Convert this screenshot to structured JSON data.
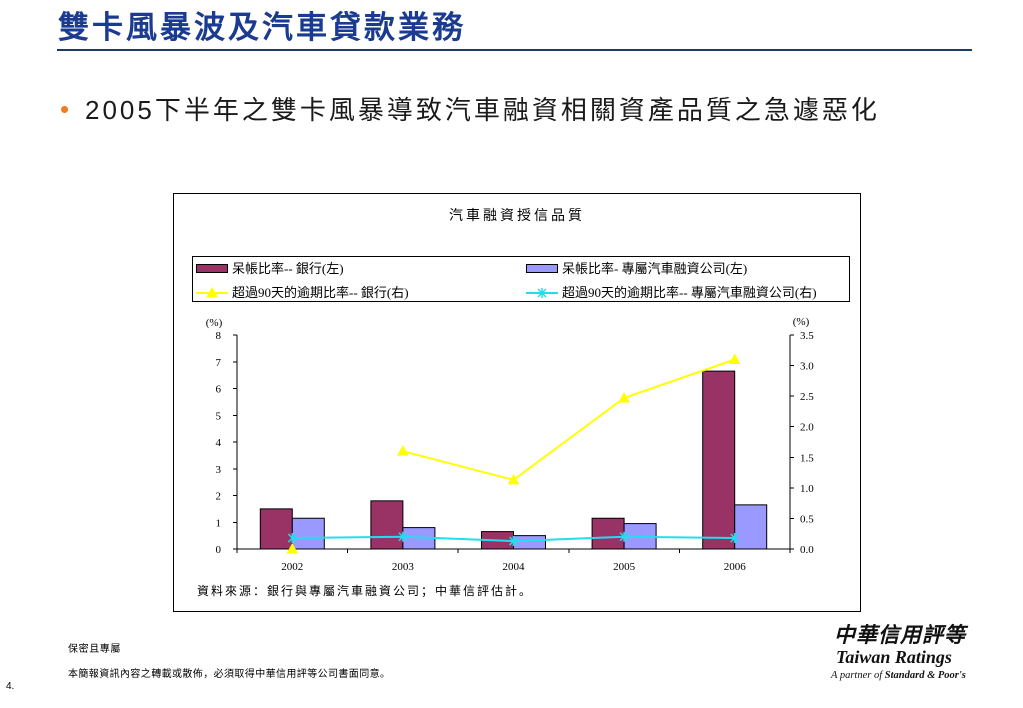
{
  "slide": {
    "title": "雙卡風暴波及汽車貸款業務",
    "bullet": {
      "marker": "•",
      "text": "2005下半年之雙卡風暴導致汽車融資相關資產品質之急遽惡化"
    },
    "page_number": "4."
  },
  "footer": {
    "confidential": "保密且專屬",
    "notice": "本簡報資訊內容之轉載或散佈，必須取得中華信用評等公司書面同意。"
  },
  "logo": {
    "chinese": "中華信用評等",
    "english": "Taiwan Ratings",
    "partner_prefix": "A partner of",
    "partner_name": "Standard & Poor's"
  },
  "colors": {
    "title": "#1a3b8f",
    "rule": "#1f3864",
    "bullet": "#f07c1c"
  },
  "chart_data": {
    "type": "bar",
    "title": "汽車融資授信品質",
    "categories": [
      "2002",
      "2003",
      "2004",
      "2005",
      "2006"
    ],
    "y_left": {
      "label": "(%)",
      "range": [
        0,
        8
      ],
      "ticks": [
        "0",
        "1",
        "2",
        "3",
        "4",
        "5",
        "6",
        "7",
        "8"
      ]
    },
    "y_right": {
      "label": "(%)",
      "range": [
        0,
        3.5
      ],
      "ticks": [
        "0.0",
        "0.5",
        "1.0",
        "1.5",
        "2.0",
        "2.5",
        "3.0",
        "3.5"
      ]
    },
    "series": [
      {
        "name": "呆帳比率-- 銀行(左)",
        "type": "bar",
        "axis": "left",
        "color": "#993366",
        "values": [
          1.5,
          1.8,
          0.65,
          1.15,
          6.65
        ]
      },
      {
        "name": "呆帳比率- 專屬汽車融資公司(左)",
        "type": "bar",
        "axis": "left",
        "color": "#9999FF",
        "values": [
          1.15,
          0.8,
          0.5,
          0.95,
          1.65
        ]
      },
      {
        "name": "超過90天的逾期比率-- 銀行(右)",
        "type": "line",
        "axis": "right",
        "color": "#FFFF00",
        "marker": "triangle",
        "values": [
          0,
          1.6,
          1.13,
          2.47,
          3.1
        ]
      },
      {
        "name": "超過90天的逾期比率-- 專屬汽車融資公司(右)",
        "type": "line",
        "axis": "right",
        "color": "#22DDEE",
        "marker": "asterisk",
        "values": [
          0.18,
          0.2,
          0.13,
          0.2,
          0.18
        ]
      }
    ],
    "legend": "top",
    "grid": false,
    "source": "資料來源：銀行與專屬汽車融資公司；中華信評估計。"
  }
}
